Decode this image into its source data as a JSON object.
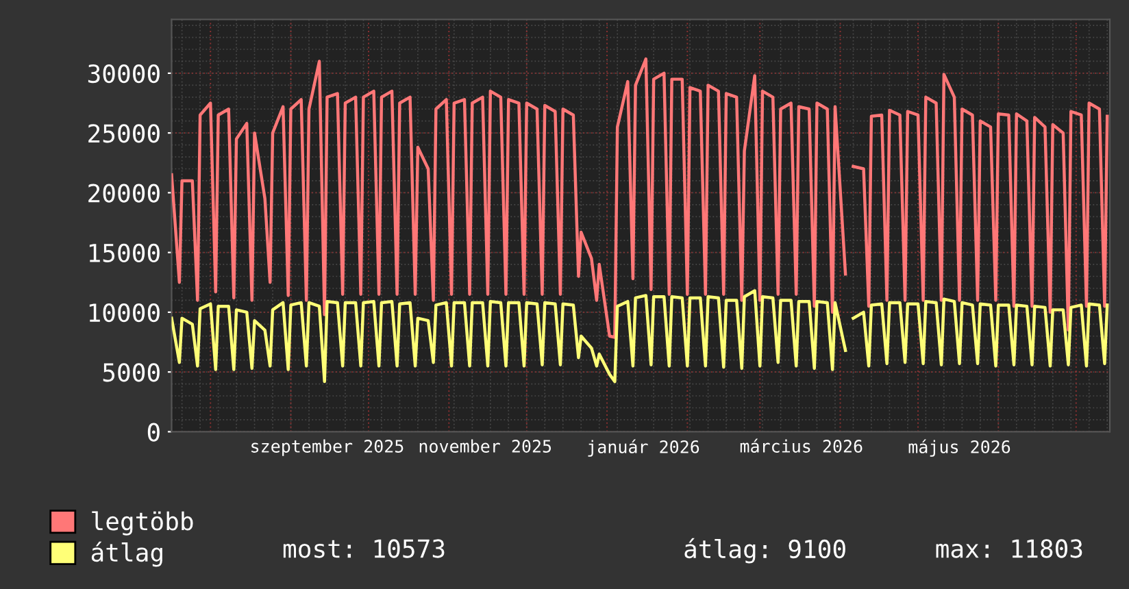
{
  "chart_data": {
    "type": "line",
    "xlim": [
      "2025-07-17",
      "2026-07-14"
    ],
    "ylim": [
      0,
      34500
    ],
    "yticks": [
      0,
      5000,
      10000,
      15000,
      20000,
      25000,
      30000
    ],
    "xticks": [
      {
        "value": "2025-09-15",
        "label": "szeptember 2025"
      },
      {
        "value": "2025-11-15",
        "label": "november 2025"
      },
      {
        "value": "2026-01-15",
        "label": "január 2026"
      },
      {
        "value": "2026-03-17",
        "label": "március 2026"
      },
      {
        "value": "2026-05-17",
        "label": "május 2026"
      }
    ],
    "grid": true,
    "legend": "bottom",
    "marker": "none",
    "line_style": "solid",
    "x": [
      "2025-07-17",
      "2025-07-20",
      "2025-07-21",
      "2025-07-25",
      "2025-07-27",
      "2025-07-28",
      "2025-08-01",
      "2025-08-03",
      "2025-08-04",
      "2025-08-08",
      "2025-08-10",
      "2025-08-11",
      "2025-08-15",
      "2025-08-17",
      "2025-08-18",
      "2025-08-22",
      "2025-08-24",
      "2025-08-25",
      "2025-08-29",
      "2025-08-31",
      "2025-09-01",
      "2025-09-05",
      "2025-09-07",
      "2025-09-08",
      "2025-09-12",
      "2025-09-14",
      "2025-09-15",
      "2025-09-19",
      "2025-09-21",
      "2025-09-22",
      "2025-09-26",
      "2025-09-28",
      "2025-09-29",
      "2025-10-03",
      "2025-10-05",
      "2025-10-06",
      "2025-10-10",
      "2025-10-12",
      "2025-10-13",
      "2025-10-17",
      "2025-10-19",
      "2025-10-20",
      "2025-10-24",
      "2025-10-26",
      "2025-10-27",
      "2025-10-31",
      "2025-11-02",
      "2025-11-03",
      "2025-11-07",
      "2025-11-09",
      "2025-11-10",
      "2025-11-14",
      "2025-11-16",
      "2025-11-17",
      "2025-11-21",
      "2025-11-23",
      "2025-11-24",
      "2025-11-28",
      "2025-11-30",
      "2025-12-01",
      "2025-12-05",
      "2025-12-07",
      "2025-12-08",
      "2025-12-12",
      "2025-12-14",
      "2025-12-15",
      "2025-12-19",
      "2025-12-21",
      "2025-12-22",
      "2025-12-26",
      "2025-12-28",
      "2025-12-29",
      "2026-01-02",
      "2026-01-04",
      "2026-01-05",
      "2026-01-09",
      "2026-01-11",
      "2026-01-12",
      "2026-01-16",
      "2026-01-18",
      "2026-01-19",
      "2026-01-23",
      "2026-01-25",
      "2026-01-26",
      "2026-01-30",
      "2026-02-01",
      "2026-02-02",
      "2026-02-06",
      "2026-02-08",
      "2026-02-09",
      "2026-02-13",
      "2026-02-15",
      "2026-02-16",
      "2026-02-20",
      "2026-02-22",
      "2026-02-23",
      "2026-02-27",
      "2026-03-01",
      "2026-03-02",
      "2026-03-06",
      "2026-03-08",
      "2026-03-09",
      "2026-03-13",
      "2026-03-15",
      "2026-03-16",
      "2026-03-20",
      "2026-03-22",
      "2026-03-23",
      "2026-03-27",
      "2026-03-29",
      "2026-03-30",
      "2026-04-03",
      "2026-04-05",
      "2026-04-06",
      "2026-04-10",
      "2026-04-12",
      "2026-04-13",
      "2026-04-17",
      "2026-04-19",
      "2026-04-20",
      "2026-04-24",
      "2026-04-26",
      "2026-04-27",
      "2026-05-01",
      "2026-05-03",
      "2026-05-04",
      "2026-05-08",
      "2026-05-10",
      "2026-05-11",
      "2026-05-15",
      "2026-05-17",
      "2026-05-18",
      "2026-05-22",
      "2026-05-24",
      "2026-05-25",
      "2026-05-29",
      "2026-05-31",
      "2026-06-01",
      "2026-06-05",
      "2026-06-07",
      "2026-06-08",
      "2026-06-12",
      "2026-06-14",
      "2026-06-15",
      "2026-06-19",
      "2026-06-21",
      "2026-06-22",
      "2026-06-26",
      "2026-06-28",
      "2026-06-29",
      "2026-07-03",
      "2026-07-05",
      "2026-07-06",
      "2026-07-10",
      "2026-07-12",
      "2026-07-13"
    ],
    "series": [
      {
        "name": "legtöbb",
        "color": "#ff7777",
        "values": [
          21500,
          12500,
          21000,
          21000,
          11000,
          26500,
          27500,
          11700,
          26500,
          27000,
          11200,
          24500,
          25800,
          11000,
          25000,
          19500,
          12500,
          25000,
          27200,
          11400,
          27000,
          27800,
          11000,
          27000,
          31000,
          9800,
          28000,
          28300,
          11500,
          27500,
          28000,
          11500,
          28000,
          28500,
          11500,
          28000,
          28500,
          11500,
          27500,
          28000,
          11500,
          23800,
          22000,
          11000,
          27000,
          27800,
          11500,
          27500,
          27800,
          11500,
          27500,
          28000,
          11500,
          28500,
          28000,
          11500,
          27800,
          27500,
          11500,
          27500,
          27000,
          11500,
          27300,
          26800,
          11500,
          27000,
          26500,
          13000,
          16700,
          14500,
          11000,
          14000,
          8000,
          7900,
          25500,
          29300,
          12800,
          29000,
          31200,
          11900,
          29500,
          30000,
          11500,
          29500,
          29500,
          11500,
          28800,
          28500,
          11500,
          29000,
          28500,
          11500,
          28300,
          28000,
          11000,
          23500,
          29800,
          11000,
          28500,
          28000,
          11500,
          27000,
          27500,
          11500,
          27200,
          27000,
          10500,
          27500,
          27000,
          10000,
          27200,
          13200,
          null,
          22200,
          22000,
          10500,
          26400,
          26500,
          11000,
          26900,
          26500,
          11000,
          26800,
          26500,
          11000,
          28000,
          27500,
          11000,
          29900,
          28000,
          11000,
          27000,
          26500,
          11000,
          26000,
          25500,
          11000,
          26600,
          26500,
          10500,
          26600,
          26000,
          10500,
          26300,
          25500,
          10000,
          25700,
          25000,
          8500,
          26800,
          26500,
          10500,
          27500,
          27000,
          10500,
          26400
        ]
      },
      {
        "name": "átlag",
        "color": "#ffff77",
        "values": [
          9500,
          5800,
          9500,
          9000,
          5500,
          10300,
          10700,
          5200,
          10500,
          10500,
          5200,
          10200,
          10000,
          5300,
          9300,
          8500,
          5500,
          10200,
          10800,
          5200,
          10600,
          10800,
          5500,
          10800,
          10500,
          4200,
          10900,
          10800,
          5500,
          10800,
          10800,
          5500,
          10800,
          10900,
          5500,
          10800,
          10900,
          5500,
          10700,
          10800,
          5500,
          9500,
          9300,
          5800,
          10600,
          10800,
          5500,
          10800,
          10800,
          5500,
          10800,
          10800,
          5500,
          10900,
          10800,
          5500,
          10800,
          10800,
          5500,
          10800,
          10700,
          5600,
          10800,
          10700,
          5600,
          10700,
          10600,
          6200,
          8000,
          7000,
          5500,
          6500,
          4800,
          4200,
          10500,
          10900,
          5500,
          11200,
          11400,
          5600,
          11300,
          11300,
          5500,
          11300,
          11200,
          5500,
          11200,
          11200,
          5500,
          11300,
          11200,
          5400,
          11000,
          11000,
          5300,
          11300,
          11800,
          5500,
          11300,
          11200,
          5800,
          11000,
          11000,
          5500,
          10900,
          10900,
          5300,
          10900,
          10800,
          5200,
          10800,
          6800,
          null,
          9500,
          10000,
          5500,
          10600,
          10700,
          5700,
          10800,
          10800,
          5800,
          10700,
          10700,
          5700,
          10900,
          10800,
          5600,
          11100,
          10900,
          5700,
          10800,
          10600,
          5700,
          10700,
          10600,
          5500,
          10600,
          10600,
          5600,
          10600,
          10500,
          5600,
          10500,
          10400,
          5500,
          10200,
          10200,
          5600,
          10400,
          10600,
          5500,
          10700,
          10600,
          5700,
          10600
        ]
      }
    ],
    "annotations": [
      "most: 10573",
      "átlag: 9100",
      "max: 11803"
    ]
  }
}
